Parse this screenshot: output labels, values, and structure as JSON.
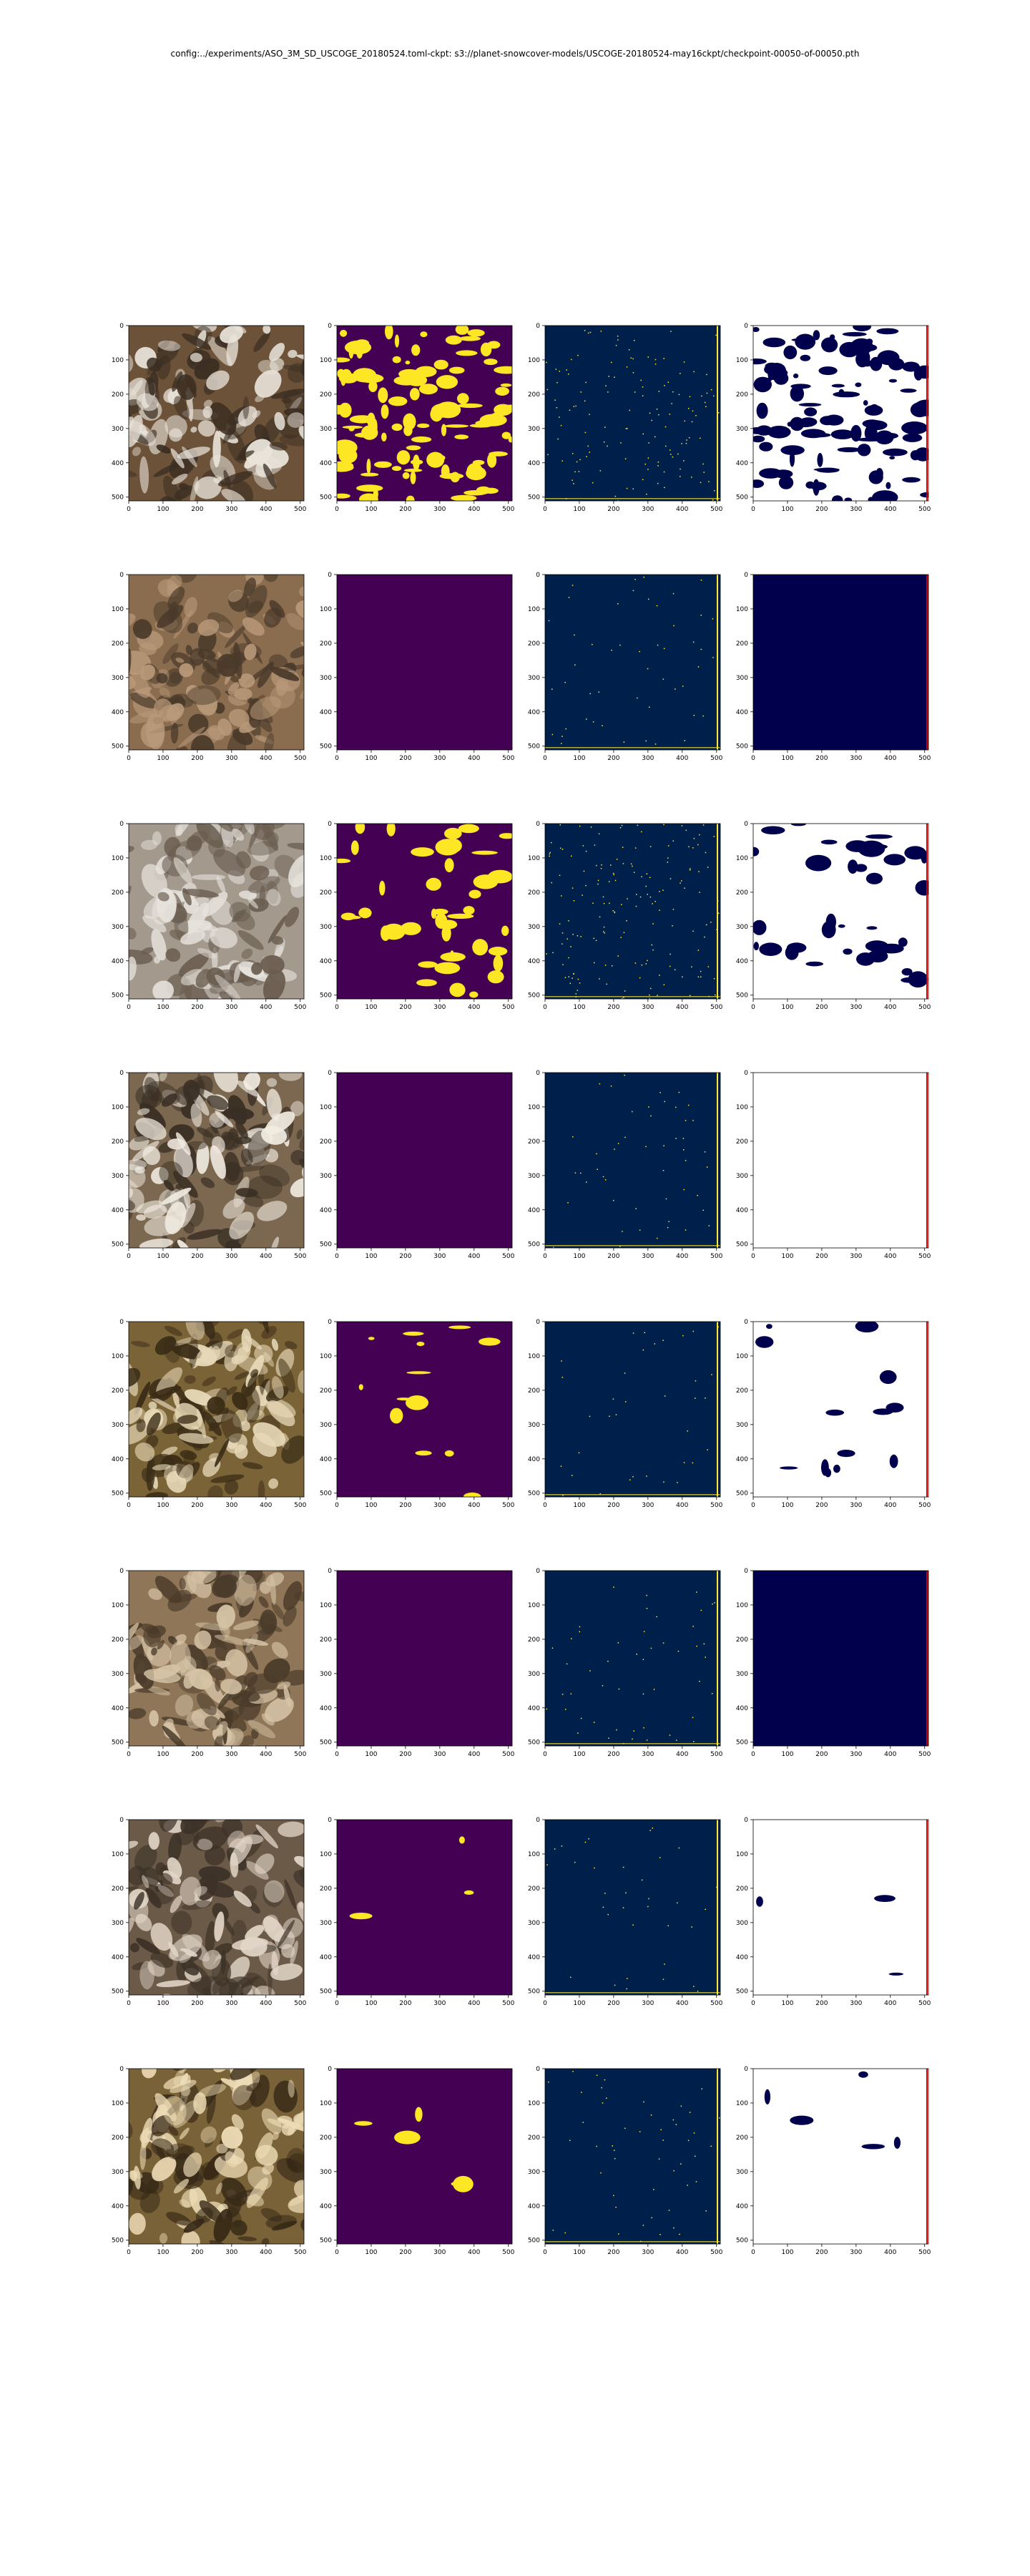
{
  "figure": {
    "title": "config:../experiments/ASO_3M_SD_USCOGE_20180524.toml-ckpt: s3://planet-snowcover-models/USCOGE-20180524-may16ckpt/checkpoint-00050-of-00050.pth"
  },
  "chart_data": {
    "type": "image_grid",
    "rows": 8,
    "cols": 4,
    "column_kinds": [
      "rgb-image",
      "binary-mask-viridis",
      "binary-mask-cividis",
      "difference-seismic"
    ],
    "axis_ticks": {
      "x": [
        "0",
        "100",
        "200",
        "300",
        "400",
        "500"
      ],
      "y": [
        "0",
        "100",
        "200",
        "300",
        "400",
        "500"
      ]
    },
    "axis_range": {
      "x": [
        0,
        511
      ],
      "y": [
        0,
        511
      ]
    },
    "colors": {
      "viridis_low": "#440154",
      "viridis_high": "#fde725",
      "cividis_low": "#00204c",
      "cividis_high": "#fde737",
      "seismic_low": "#00004c",
      "seismic_mid": "#ffffff",
      "seismic_high": "#d20000"
    },
    "panels": [
      {
        "row": 0,
        "rgb": [
          "#6b5238",
          "#e9e3da",
          "#3b2e22"
        ],
        "mask2_snow_fraction": 0.42,
        "mask3_snow_fraction": 0.04,
        "col4_bg": "#ffffff",
        "col4_blue_fraction": 0.42
      },
      {
        "row": 1,
        "rgb": [
          "#8a6c4f",
          "#b99a7a",
          "#4a3a2a"
        ],
        "mask2_snow_fraction": 0.0,
        "mask3_snow_fraction": 0.01,
        "col4_bg": "#00004c",
        "col4_blue_fraction": 0.0
      },
      {
        "row": 2,
        "rgb": [
          "#a3998d",
          "#e6e2dc",
          "#6a5d50"
        ],
        "mask2_snow_fraction": 0.16,
        "mask3_snow_fraction": 0.05,
        "col4_bg": "#ffffff",
        "col4_blue_fraction": 0.14
      },
      {
        "row": 3,
        "rgb": [
          "#7c6850",
          "#f1ebe1",
          "#3a2f24"
        ],
        "mask2_snow_fraction": 0.0,
        "mask3_snow_fraction": 0.01,
        "col4_bg": "#ffffff",
        "col4_blue_fraction": 0.0
      },
      {
        "row": 4,
        "rgb": [
          "#7b6338",
          "#e7d9b8",
          "#3a2c16"
        ],
        "mask2_snow_fraction": 0.05,
        "mask3_snow_fraction": 0.005,
        "col4_bg": "#ffffff",
        "col4_blue_fraction": 0.05
      },
      {
        "row": 5,
        "rgb": [
          "#8f7658",
          "#d6c3a6",
          "#4a3b2a"
        ],
        "mask2_snow_fraction": 0.0,
        "mask3_snow_fraction": 0.01,
        "col4_bg": "#00004c",
        "col4_blue_fraction": 0.0
      },
      {
        "row": 6,
        "rgb": [
          "#6b5a48",
          "#e2d6c8",
          "#3d3228"
        ],
        "mask2_snow_fraction": 0.01,
        "mask3_snow_fraction": 0.005,
        "col4_bg": "#ffffff",
        "col4_blue_fraction": 0.01
      },
      {
        "row": 7,
        "rgb": [
          "#7a6238",
          "#eddcb6",
          "#352816"
        ],
        "mask2_snow_fraction": 0.02,
        "mask3_snow_fraction": 0.01,
        "col4_bg": "#ffffff",
        "col4_blue_fraction": 0.02
      }
    ]
  }
}
